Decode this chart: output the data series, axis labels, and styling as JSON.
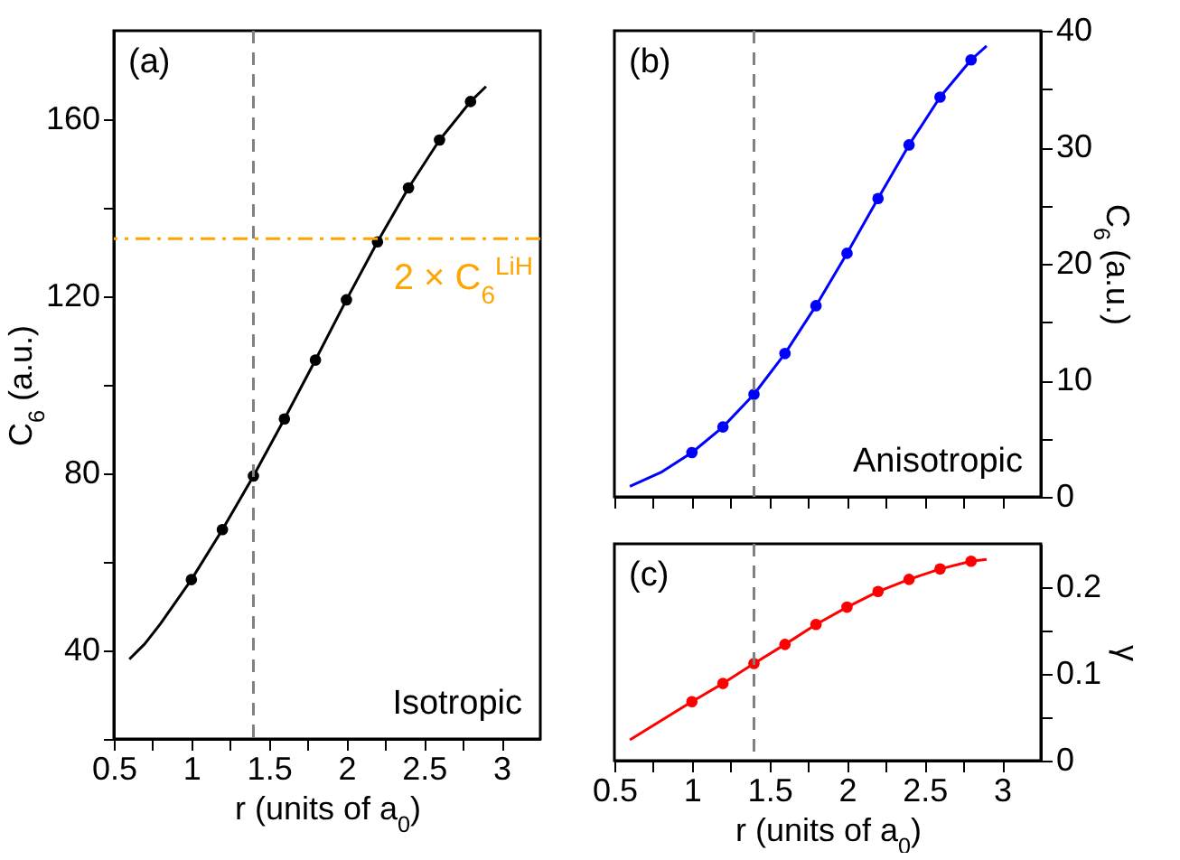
{
  "chart_data": [
    {
      "type": "line",
      "xlabel": "r (units of a$_{0}$)",
      "ylabel": "C$_{6}$ (a.u.)",
      "xlim": [
        0.5,
        3.25
      ],
      "xticks": [
        0.5,
        {
          "value": 0.75,
          "label": null
        },
        1,
        {
          "value": 1.25,
          "label": null
        },
        1.5,
        {
          "value": 1.75,
          "label": null
        },
        2,
        {
          "value": 2.25,
          "label": null
        },
        2.5,
        {
          "value": 2.75,
          "label": null
        },
        3
      ],
      "ylim": [
        20,
        180
      ],
      "yticks": [
        {
          "value": 20,
          "label": null
        },
        40,
        {
          "value": 60,
          "label": null
        },
        80,
        {
          "value": 100,
          "label": null
        },
        120,
        {
          "value": 140,
          "label": null
        },
        160
      ],
      "grid": false,
      "annotations": [
        "(a)",
        "Isotropic"
      ],
      "ref_lines": [
        {
          "axis": "x",
          "value": 1.4,
          "color": "#808080",
          "line_style": "dashed"
        },
        {
          "axis": "y",
          "value": 133,
          "label": "2 × C$_{6}$$^{LiH}$",
          "color": "#ffa500",
          "line_style": "dashdot"
        }
      ],
      "series": [
        {
          "type": "line",
          "marker": "none",
          "color": "#000000",
          "x": [
            0.6,
            0.7,
            0.8,
            1,
            1.2,
            1.4,
            1.6,
            1.8,
            2,
            2.2,
            2.4,
            2.6,
            2.8,
            2.9
          ],
          "values": [
            38,
            41.5,
            46,
            56,
            67.3,
            79.4,
            92.3,
            105.6,
            119.2,
            132.3,
            144.5,
            155.3,
            164,
            167.4
          ]
        },
        {
          "type": "scatter",
          "marker": "circle",
          "color": "#000000",
          "x": [
            1,
            1.2,
            1.4,
            1.6,
            1.8,
            2,
            2.2,
            2.4,
            2.6,
            2.8
          ],
          "values": [
            56,
            67.3,
            79.4,
            92.3,
            105.6,
            119.2,
            132.3,
            144.5,
            155.3,
            164
          ]
        }
      ]
    },
    {
      "type": "line",
      "y2label": "C$_{6}$ (a.u.)",
      "xlim": [
        0.5,
        3.25
      ],
      "xticks": [
        0.5,
        {
          "value": 0.75,
          "label": null
        },
        1,
        {
          "value": 1.25,
          "label": null
        },
        1.5,
        {
          "value": 1.75,
          "label": null
        },
        2,
        {
          "value": 2.25,
          "label": null
        },
        2.5,
        {
          "value": 2.75,
          "label": null
        },
        3
      ],
      "y2lim": [
        0,
        40
      ],
      "y2ticks": [
        0,
        {
          "value": 5,
          "label": null
        },
        10,
        {
          "value": 15,
          "label": null
        },
        20,
        {
          "value": 25,
          "label": null
        },
        30,
        {
          "value": 35,
          "label": null
        },
        40
      ],
      "tick_labels": "y",
      "grid": false,
      "annotations": [
        "(b)",
        "Anisotropic"
      ],
      "ref_lines": [
        {
          "axis": "x",
          "value": 1.4,
          "color": "#808080",
          "line_style": "dashed"
        }
      ],
      "series": [
        {
          "type": "line",
          "marker": "none",
          "axis": "y2",
          "color": "#0000ff",
          "x": [
            0.6,
            0.8,
            1,
            1.2,
            1.4,
            1.6,
            1.8,
            2,
            2.2,
            2.4,
            2.6,
            2.8,
            2.9
          ],
          "values": [
            0.9,
            2.1,
            3.8,
            6.0,
            8.8,
            12.3,
            16.4,
            20.9,
            25.6,
            30.2,
            34.3,
            37.5,
            38.7
          ]
        },
        {
          "type": "scatter",
          "marker": "circle",
          "axis": "y2",
          "color": "#0000ff",
          "x": [
            1,
            1.2,
            1.4,
            1.6,
            1.8,
            2,
            2.2,
            2.4,
            2.6,
            2.8
          ],
          "values": [
            3.8,
            6.0,
            8.8,
            12.3,
            16.4,
            20.9,
            25.6,
            30.2,
            34.3,
            37.5
          ]
        }
      ]
    },
    {
      "type": "line",
      "xlabel": "r (units of a$_{0}$)",
      "y2label": "γ",
      "xlim": [
        0.5,
        3.25
      ],
      "xticks": [
        0.5,
        {
          "value": 0.75,
          "label": null
        },
        1,
        {
          "value": 1.25,
          "label": null
        },
        1.5,
        {
          "value": 1.75,
          "label": null
        },
        2,
        {
          "value": 2.25,
          "label": null
        },
        2.5,
        {
          "value": 2.75,
          "label": null
        },
        3
      ],
      "y2lim": [
        0,
        0.25
      ],
      "y2ticks": [
        0,
        {
          "value": 0.05,
          "label": null
        },
        0.1,
        {
          "value": 0.15,
          "label": null
        },
        0.2
      ],
      "grid": false,
      "annotations": [
        "(c)"
      ],
      "ref_lines": [
        {
          "axis": "x",
          "value": 1.4,
          "color": "#808080",
          "line_style": "dashed"
        }
      ],
      "series": [
        {
          "type": "line",
          "marker": "none",
          "axis": "y2",
          "color": "#ff0000",
          "x": [
            0.6,
            1,
            1.2,
            1.4,
            1.6,
            1.8,
            2,
            2.2,
            2.4,
            2.6,
            2.8,
            2.9
          ],
          "values": [
            0.024,
            0.068,
            0.089,
            0.112,
            0.134,
            0.157,
            0.177,
            0.195,
            0.209,
            0.221,
            0.23,
            0.232
          ]
        },
        {
          "type": "scatter",
          "marker": "circle",
          "axis": "y2",
          "color": "#ff0000",
          "x": [
            1,
            1.2,
            1.4,
            1.6,
            1.8,
            2,
            2.2,
            2.4,
            2.6,
            2.8
          ],
          "values": [
            0.068,
            0.089,
            0.112,
            0.134,
            0.157,
            0.177,
            0.195,
            0.209,
            0.221,
            0.23
          ]
        }
      ]
    }
  ]
}
